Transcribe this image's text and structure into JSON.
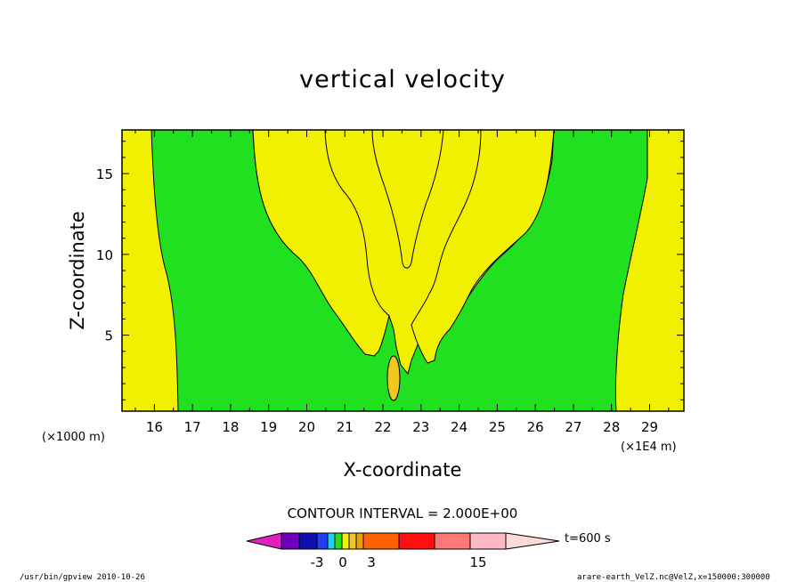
{
  "chart_data": {
    "type": "contour",
    "title": "vertical velocity",
    "xlabel": "X-coordinate",
    "ylabel": "Z-coordinate",
    "x_ticks": [
      "16",
      "17",
      "18",
      "19",
      "20",
      "21",
      "22",
      "23",
      "24",
      "25",
      "26",
      "27",
      "28",
      "29"
    ],
    "y_ticks": [
      "5",
      "10",
      "15"
    ],
    "x_unit_left": "(×1000 m)",
    "x_unit_right": "(×1E4 m)",
    "xlim": [
      151500,
      299000
    ],
    "ylim": [
      0.3,
      17.7
    ],
    "contour_interval_text": "CONTOUR INTERVAL = 2.000E+00",
    "colorbar": {
      "colors": [
        "#e020c0",
        "#7000c0",
        "#1010b0",
        "#2040f0",
        "#20d0f0",
        "#20e020",
        "#f0f000",
        "#f0c820",
        "#f0a000",
        "#ff6000",
        "#ff1010",
        "#ff7878",
        "#ffb8c8",
        "#ffd8d8"
      ],
      "tick_labels": [
        "-3",
        "0",
        "3",
        "15"
      ],
      "time_label": "t=600 s"
    },
    "colors": {
      "positive_low": "#f0f000",
      "near_zero": "#20e020",
      "core": "#f0c820"
    },
    "footer_left": "/usr/bin/gpview   2010-10-26",
    "footer_right": "arare-earth_VelZ.nc@VelZ,x=150000:300000"
  }
}
